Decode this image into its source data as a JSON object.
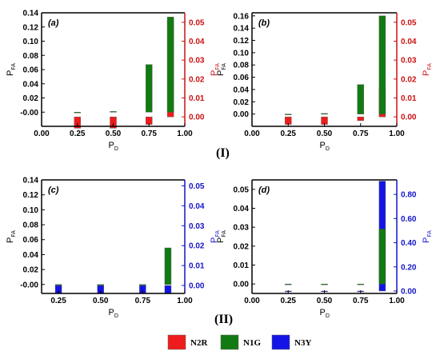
{
  "figure": {
    "group_labels": [
      "(I)",
      "(II)"
    ],
    "legend": [
      {
        "label": "N2R",
        "color": "#ee1c1c"
      },
      {
        "label": "N1G",
        "color": "#127a12"
      },
      {
        "label": "N3Y",
        "color": "#1414e6"
      }
    ]
  },
  "chart_data": [
    {
      "type": "bar",
      "panel": "(a)",
      "xlabel": "P_D",
      "ylabel_left": "P_FA",
      "ylabel_right": "P_FA",
      "right_axis_color": "#cc1111",
      "x_ticks": [
        "0.00",
        "0.25",
        "0.50",
        "0.75",
        "1.00"
      ],
      "xlim": [
        0,
        1
      ],
      "ylim_left": [
        -0.02,
        0.14
      ],
      "y_ticks_left": [
        "-0.00",
        "0.02",
        "0.04",
        "0.06",
        "0.08",
        "0.10",
        "0.12",
        "0.14"
      ],
      "ylim_right": [
        -0.005,
        0.055
      ],
      "y_ticks_right": [
        "0.00",
        "0.01",
        "0.02",
        "0.03",
        "0.04",
        "0.05"
      ],
      "x": [
        0.25,
        0.5,
        0.75,
        0.9
      ],
      "series": [
        {
          "name": "N2R",
          "axis": "right",
          "color": "#ee1c1c",
          "values": [
            -0.006,
            -0.006,
            -0.004,
            0.051
          ]
        },
        {
          "name": "N1G",
          "axis": "left",
          "color": "#127a12",
          "values": [
            0.0,
            0.001,
            0.067,
            0.134
          ]
        }
      ]
    },
    {
      "type": "bar",
      "panel": "(b)",
      "xlabel": "P_D",
      "ylabel_left": "P_FA",
      "ylabel_right": "P_FA",
      "right_axis_color": "#cc1111",
      "x_ticks": [
        "0.00",
        "0.25",
        "0.50",
        "0.75",
        "1.00"
      ],
      "xlim": [
        0,
        1
      ],
      "ylim_left": [
        -0.02,
        0.165
      ],
      "y_ticks_left": [
        "0.00",
        "0.02",
        "0.04",
        "0.06",
        "0.08",
        "0.10",
        "0.12",
        "0.14",
        "0.16"
      ],
      "ylim_right": [
        -0.005,
        0.055
      ],
      "y_ticks_right": [
        "0.00",
        "0.01",
        "0.02",
        "0.03",
        "0.04",
        "0.05"
      ],
      "x": [
        0.25,
        0.5,
        0.75,
        0.9
      ],
      "series": [
        {
          "name": "N2R",
          "axis": "right",
          "color": "#ee1c1c",
          "values": [
            -0.004,
            -0.004,
            -0.002,
            0.015
          ]
        },
        {
          "name": "N1G",
          "axis": "left",
          "color": "#127a12",
          "values": [
            0.0,
            0.001,
            0.048,
            0.16
          ]
        }
      ]
    },
    {
      "type": "bar",
      "panel": "(c)",
      "xlabel": "P_D",
      "ylabel_left": "P_FA",
      "ylabel_right": "P_FA",
      "right_axis_color": "#1414c8",
      "x_ticks": [
        "0.25",
        "0.50",
        "0.75",
        "1.00"
      ],
      "xlim": [
        0.15,
        1
      ],
      "ylim_left": [
        -0.012,
        0.14
      ],
      "y_ticks_left": [
        "-0.00",
        "0.02",
        "0.04",
        "0.06",
        "0.08",
        "0.10",
        "0.12",
        "0.14"
      ],
      "ylim_right": [
        -0.004,
        0.053
      ],
      "y_ticks_right": [
        "0.00",
        "0.01",
        "0.02",
        "0.03",
        "0.04",
        "0.05"
      ],
      "x": [
        0.25,
        0.5,
        0.75,
        0.9
      ],
      "series": [
        {
          "name": "N3Y",
          "axis": "right",
          "color": "#1414e6",
          "values": [
            -0.004,
            -0.004,
            -0.004,
            -0.004
          ]
        },
        {
          "name": "N1G",
          "axis": "left",
          "color": "#127a12",
          "values": [
            0.0,
            0.0,
            0.0,
            0.049
          ]
        }
      ]
    },
    {
      "type": "bar",
      "panel": "(d)",
      "xlabel": "P_D",
      "ylabel_left": "P_FA",
      "ylabel_right": "P_FA",
      "right_axis_color": "#1414c8",
      "x_ticks": [
        "0.00",
        "0.25",
        "0.50",
        "0.75",
        "1.00"
      ],
      "xlim": [
        0,
        1
      ],
      "ylim_left": [
        -0.005,
        0.055
      ],
      "y_ticks_left": [
        "0.00",
        "0.01",
        "0.02",
        "0.03",
        "0.04",
        "0.05"
      ],
      "ylim_right": [
        -0.02,
        0.92
      ],
      "y_ticks_right": [
        "0.00",
        "0.20",
        "0.40",
        "0.60",
        "0.80"
      ],
      "x": [
        0.25,
        0.5,
        0.75,
        0.9
      ],
      "series": [
        {
          "name": "N3Y",
          "axis": "right",
          "color": "#1414e6",
          "values": [
            0.0,
            0.0,
            0.0,
            0.91
          ]
        },
        {
          "name": "N1G",
          "axis": "left",
          "color": "#127a12",
          "values": [
            0.0,
            0.0,
            0.0,
            0.029
          ]
        }
      ]
    }
  ]
}
